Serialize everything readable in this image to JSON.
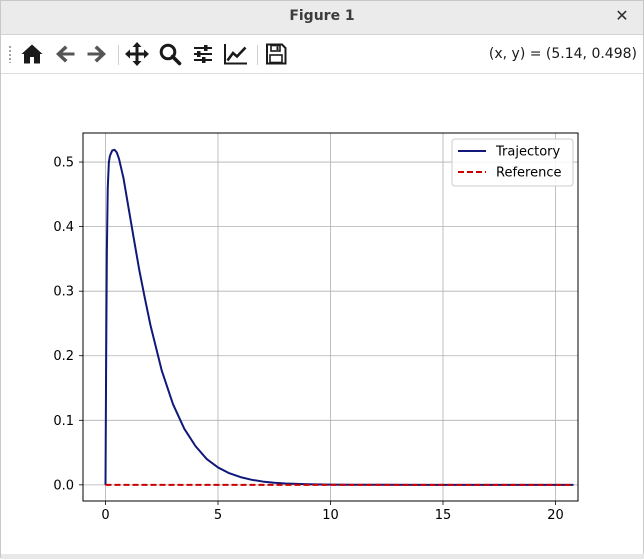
{
  "window": {
    "title": "Figure 1",
    "close_glyph": "✕"
  },
  "toolbar": {
    "buttons": [
      {
        "name": "home-button",
        "icon": "home-icon"
      },
      {
        "name": "back-button",
        "icon": "arrow-left-icon"
      },
      {
        "name": "forward-button",
        "icon": "arrow-right-icon"
      },
      {
        "name": "pan-button",
        "icon": "move-icon"
      },
      {
        "name": "zoom-button",
        "icon": "magnifier-icon"
      },
      {
        "name": "configure-subplots-button",
        "icon": "sliders-icon"
      },
      {
        "name": "edit-axes-button",
        "icon": "line-chart-icon"
      },
      {
        "name": "save-button",
        "icon": "floppy-disk-icon"
      }
    ],
    "coords_readout": "(x, y) = (5.14, 0.498)"
  },
  "colors": {
    "trajectory": "#10187a",
    "reference": "#cc0000",
    "grid": "#b0b0b0"
  },
  "chart_data": {
    "type": "line",
    "xlim": [
      -1,
      21
    ],
    "ylim": [
      -0.025,
      0.545
    ],
    "xticks": [
      0,
      5,
      10,
      15,
      20
    ],
    "xtick_labels": [
      "0",
      "5",
      "10",
      "15",
      "20"
    ],
    "yticks": [
      0.0,
      0.1,
      0.2,
      0.3,
      0.4,
      0.5
    ],
    "ytick_labels": [
      "0.0",
      "0.1",
      "0.2",
      "0.3",
      "0.4",
      "0.5"
    ],
    "grid": true,
    "legend_position": "top-right",
    "series": [
      {
        "name": "Trajectory",
        "style": "solid",
        "x": [
          0.0,
          0.03,
          0.06,
          0.1,
          0.15,
          0.2,
          0.3,
          0.4,
          0.5,
          0.6,
          0.8,
          1.0,
          1.25,
          1.5,
          1.75,
          2.0,
          2.5,
          3.0,
          3.5,
          4.0,
          4.5,
          5.0,
          5.5,
          6.0,
          6.5,
          7.0,
          7.5,
          8.0,
          9.0,
          10.0,
          11.0,
          12.0,
          14.0,
          16.0,
          18.0,
          20.0,
          20.8
        ],
        "y": [
          0.0,
          0.2,
          0.36,
          0.46,
          0.5,
          0.51,
          0.518,
          0.519,
          0.515,
          0.505,
          0.475,
          0.434,
          0.383,
          0.333,
          0.289,
          0.247,
          0.177,
          0.125,
          0.087,
          0.06,
          0.04,
          0.027,
          0.018,
          0.012,
          0.0078,
          0.0051,
          0.0033,
          0.0021,
          0.0009,
          0.0004,
          0.0002,
          0.0001,
          0.0,
          0.0,
          0.0,
          0.0,
          0.0
        ]
      },
      {
        "name": "Reference",
        "style": "dashed",
        "x": [
          0.0,
          20.8
        ],
        "y": [
          0.0,
          0.0
        ]
      }
    ]
  }
}
